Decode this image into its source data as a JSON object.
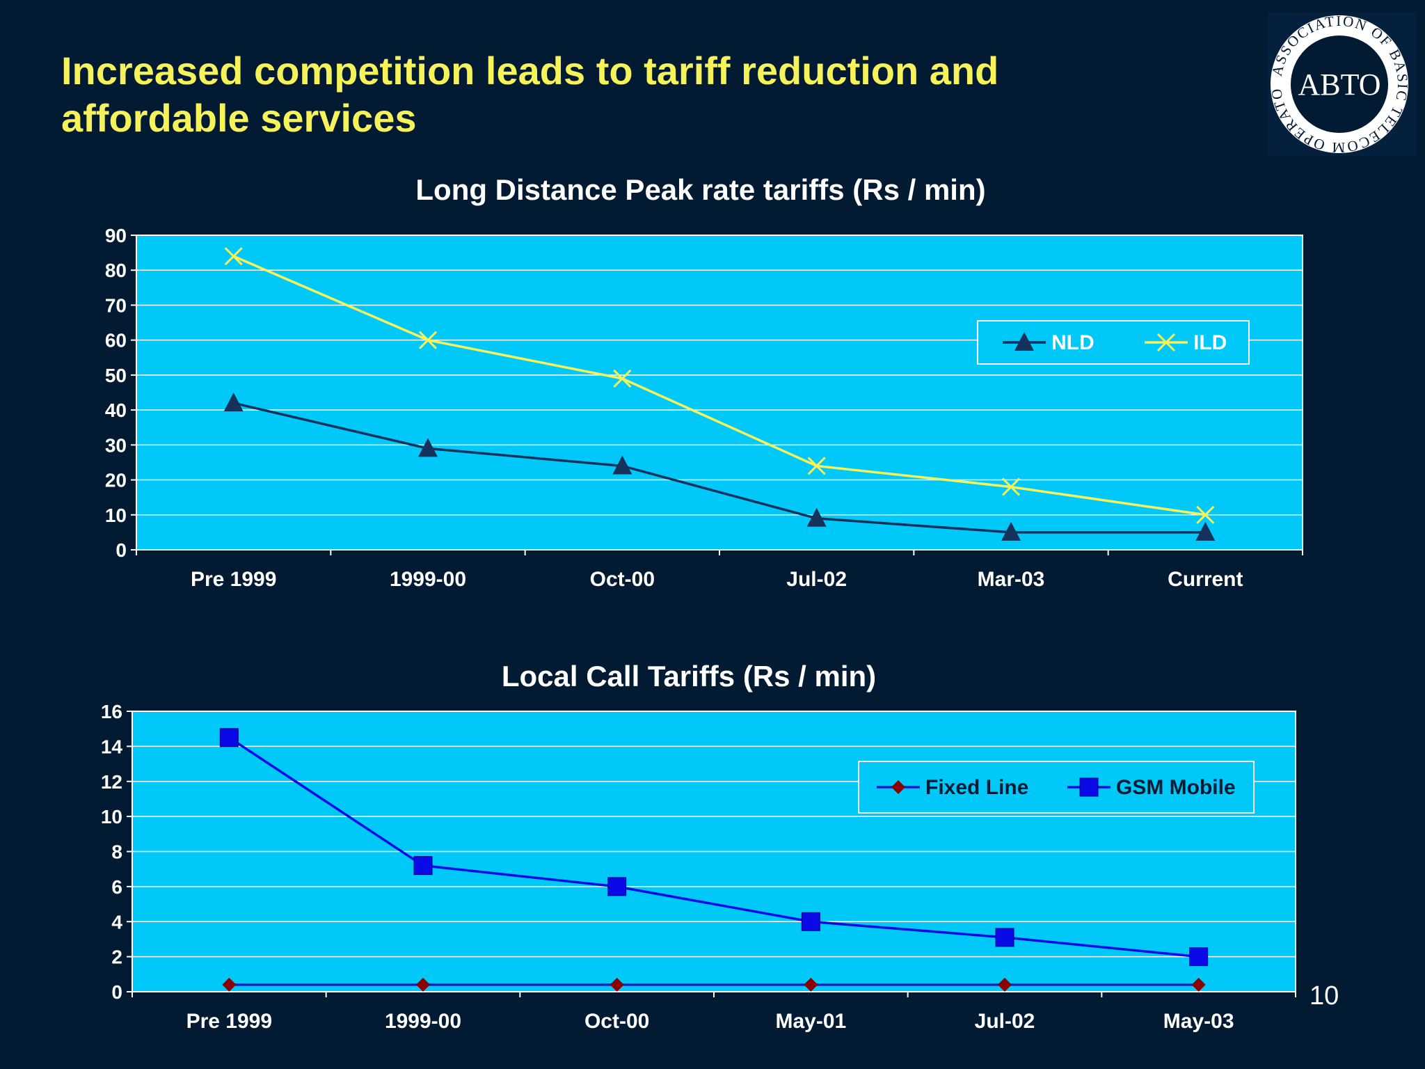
{
  "slide": {
    "title": "Increased competition leads to tariff reduction and affordable services",
    "page_number": "10",
    "logo": {
      "ring_text": "ASSOCIATION OF BASIC TELECOM OPERATORS",
      "center_text": "ABTO"
    }
  },
  "colors": {
    "background": "#031a33",
    "title": "#f5f25a",
    "plot_area": "#00c8f8",
    "nld": "#14325c",
    "ild": "#f5f25a",
    "fixed_line": "#8b0000",
    "fixed_line_connector": "#1a1acd",
    "gsm_mobile": "#0a0ae6"
  },
  "chart_data": [
    {
      "type": "line",
      "title": "Long Distance Peak rate tariffs (Rs / min)",
      "categories": [
        "Pre 1999",
        "1999-00",
        "Oct-00",
        "Jul-02",
        "Mar-03",
        "Current"
      ],
      "series": [
        {
          "name": "NLD",
          "values": [
            42,
            29,
            24,
            9,
            5,
            5
          ],
          "marker": "triangle"
        },
        {
          "name": "ILD",
          "values": [
            84,
            60,
            49,
            24,
            18,
            10
          ],
          "marker": "x"
        }
      ],
      "ylim": [
        0,
        90
      ],
      "yticks": [
        0,
        10,
        20,
        30,
        40,
        50,
        60,
        70,
        80,
        90
      ],
      "grid": true,
      "legend": "top-right"
    },
    {
      "type": "line",
      "title": "Local Call Tariffs  (Rs / min)",
      "categories": [
        "Pre 1999",
        "1999-00",
        "Oct-00",
        "May-01",
        "Jul-02",
        "May-03"
      ],
      "series": [
        {
          "name": "Fixed Line",
          "values": [
            0.4,
            0.4,
            0.4,
            0.4,
            0.4,
            0.4
          ],
          "marker": "diamond"
        },
        {
          "name": "GSM Mobile",
          "values": [
            14.5,
            7.2,
            6,
            4,
            3.1,
            2
          ],
          "marker": "square"
        }
      ],
      "ylim": [
        0,
        16
      ],
      "yticks": [
        0,
        2,
        4,
        6,
        8,
        10,
        12,
        14,
        16
      ],
      "grid": true,
      "legend": "top-right"
    }
  ]
}
